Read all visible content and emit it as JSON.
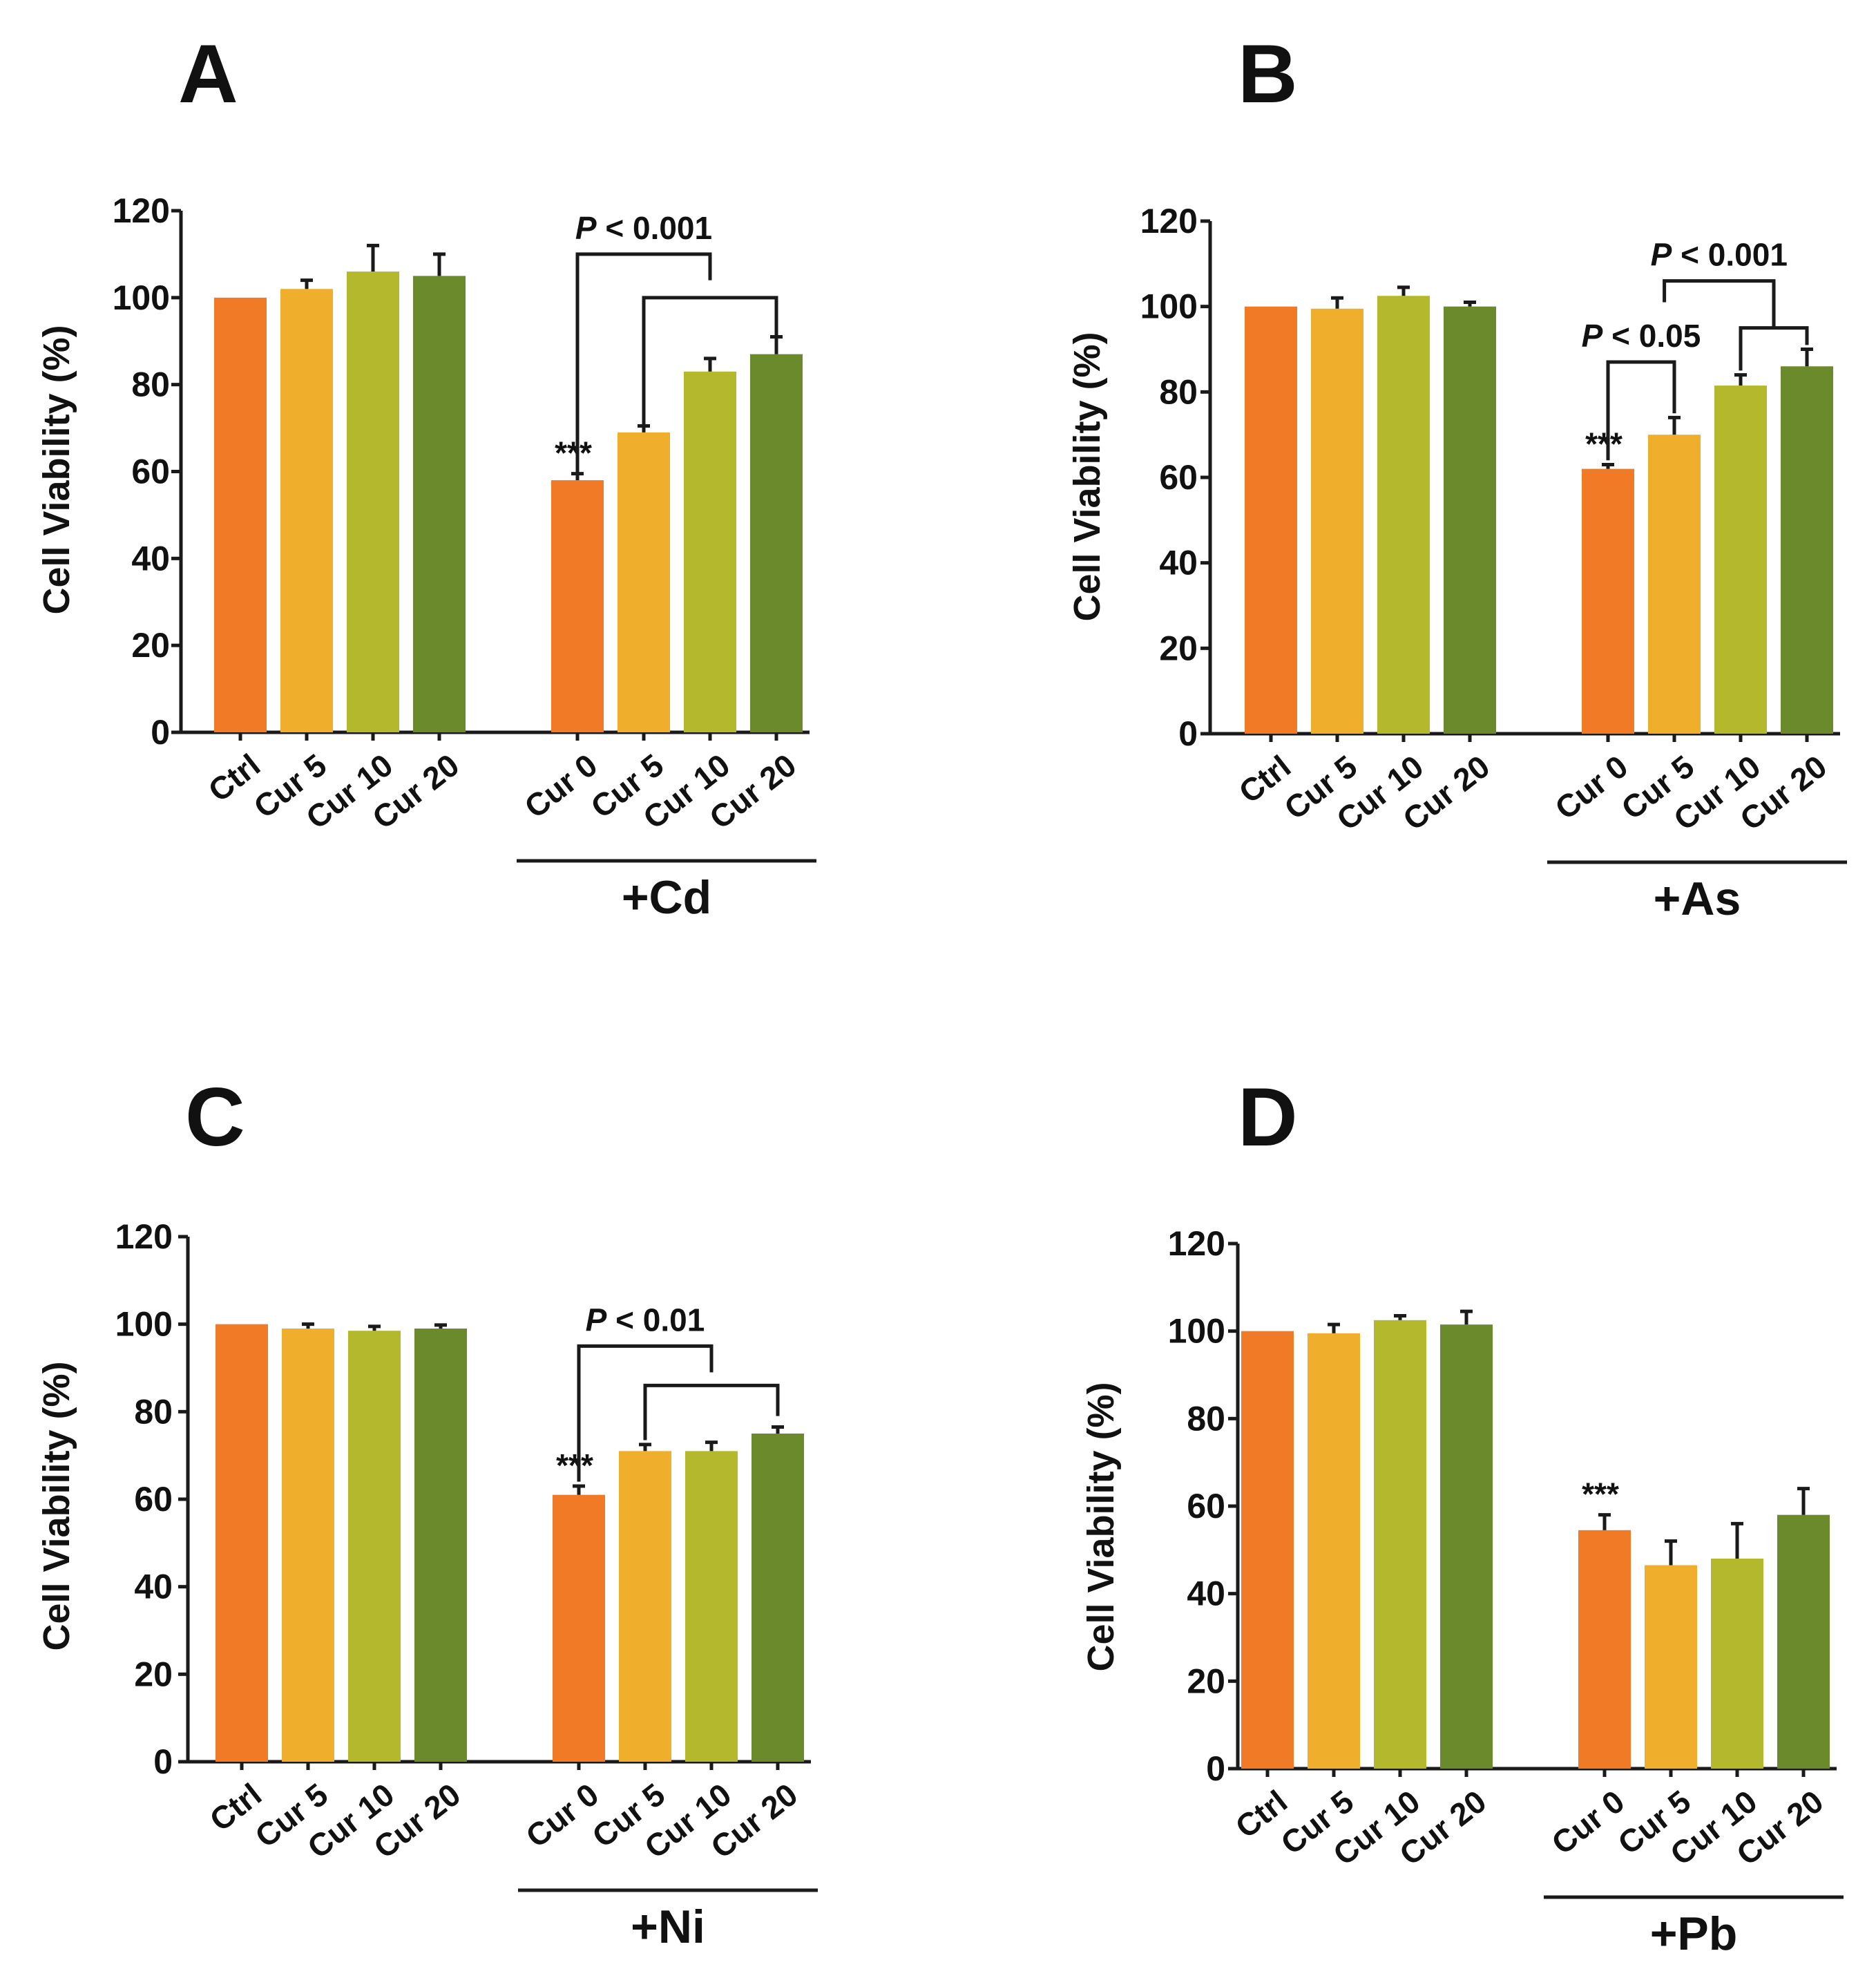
{
  "colors": {
    "Ctrl": "#f17a27",
    "Cur 0": "#f17a27",
    "Cur 5": "#efaf2c",
    "Cur 10": "#b4b82d",
    "Cur 20": "#6a8a2c"
  },
  "chart_data": [
    {
      "type": "bar",
      "panel": "A",
      "ylabel": "Cell Viability (%)",
      "ylim": [
        0,
        120
      ],
      "yticks": [
        0,
        20,
        40,
        60,
        80,
        100,
        120
      ],
      "groups": [
        {
          "label": "",
          "categories": [
            "Ctrl",
            "Cur 5",
            "Cur 10",
            "Cur 20"
          ],
          "values": [
            100,
            102,
            106,
            105
          ],
          "errors": [
            0,
            2,
            6,
            5
          ]
        },
        {
          "label": "+Cd",
          "categories": [
            "Cur 0",
            "Cur 5",
            "Cur 10",
            "Cur 20"
          ],
          "values": [
            58,
            69,
            83,
            87
          ],
          "errors": [
            1.5,
            1.5,
            3,
            4
          ]
        }
      ],
      "stars": [
        {
          "group": 1,
          "bar": 0,
          "text": "***"
        }
      ],
      "brackets": [
        {
          "label": "P < 0.001",
          "from": {
            "group": 1,
            "bar": 0
          },
          "to": {
            "group": 1,
            "bar": 2
          },
          "level": 110,
          "drop_from": 59.5
        },
        {
          "label": "",
          "from": {
            "group": 1,
            "bar": 1
          },
          "to": {
            "group": 1,
            "bar": 3
          },
          "level": 100,
          "drop_from": 70.5,
          "drop_to": 91,
          "parent": 0
        }
      ]
    },
    {
      "type": "bar",
      "panel": "B",
      "ylabel": "Cell Viability (%)",
      "ylim": [
        0,
        120
      ],
      "yticks": [
        0,
        20,
        40,
        60,
        80,
        100,
        120
      ],
      "groups": [
        {
          "label": "",
          "categories": [
            "Ctrl",
            "Cur 5",
            "Cur 10",
            "Cur 20"
          ],
          "values": [
            100,
            99.5,
            102.5,
            100
          ],
          "errors": [
            0,
            2.5,
            2,
            1
          ]
        },
        {
          "label": "+As",
          "categories": [
            "Cur 0",
            "Cur 5",
            "Cur 10",
            "Cur 20"
          ],
          "values": [
            62,
            70,
            81.5,
            86
          ],
          "errors": [
            1,
            4,
            2.5,
            4
          ]
        }
      ],
      "stars": [
        {
          "group": 1,
          "bar": 0,
          "text": "***"
        }
      ],
      "brackets": [
        {
          "label": "P < 0.05",
          "from": {
            "group": 1,
            "bar": 0
          },
          "to": {
            "group": 1,
            "bar": 1
          },
          "level": 87,
          "drop_from": 64,
          "drop_to": 75
        },
        {
          "label": "",
          "from": {
            "group": 1,
            "bar": 2
          },
          "to": {
            "group": 1,
            "bar": 3
          },
          "level": 95,
          "drop_from": 85,
          "drop_to": 91
        },
        {
          "label": "P < 0.001",
          "from": {
            "group": 1,
            "bar": 0.85
          },
          "to": {
            "group": 1,
            "bar": 2.5
          },
          "level": 106,
          "drop_from": 101,
          "parent": 1
        }
      ]
    },
    {
      "type": "bar",
      "panel": "C",
      "ylabel": "Cell Viability (%)",
      "ylim": [
        0,
        120
      ],
      "yticks": [
        0,
        20,
        40,
        60,
        80,
        100,
        120
      ],
      "groups": [
        {
          "label": "",
          "categories": [
            "Ctrl",
            "Cur 5",
            "Cur 10",
            "Cur 20"
          ],
          "values": [
            100,
            99,
            98.5,
            99
          ],
          "errors": [
            0,
            1,
            1,
            0.8
          ]
        },
        {
          "label": "+Ni",
          "categories": [
            "Cur 0",
            "Cur 5",
            "Cur 10",
            "Cur 20"
          ],
          "values": [
            61,
            71,
            71,
            75
          ],
          "errors": [
            2,
            1.5,
            2,
            1.5
          ]
        }
      ],
      "stars": [
        {
          "group": 1,
          "bar": 0,
          "text": "***"
        }
      ],
      "brackets": [
        {
          "label": "P < 0.01",
          "from": {
            "group": 1,
            "bar": 0
          },
          "to": {
            "group": 1,
            "bar": 2
          },
          "level": 95,
          "drop_from": 64
        },
        {
          "label": "",
          "from": {
            "group": 1,
            "bar": 1
          },
          "to": {
            "group": 1,
            "bar": 3
          },
          "level": 86,
          "drop_from": 73.5,
          "drop_to": 79,
          "parent": 0
        }
      ]
    },
    {
      "type": "bar",
      "panel": "D",
      "ylabel": "Cell Viability (%)",
      "ylim": [
        0,
        120
      ],
      "yticks": [
        0,
        20,
        40,
        60,
        80,
        100,
        120
      ],
      "groups": [
        {
          "label": "",
          "categories": [
            "Ctrl",
            "Cur 5",
            "Cur 10",
            "Cur 20"
          ],
          "values": [
            100,
            99.5,
            102.5,
            101.5
          ],
          "errors": [
            0,
            2,
            1,
            3
          ]
        },
        {
          "label": "+Pb",
          "categories": [
            "Cur 0",
            "Cur 5",
            "Cur 10",
            "Cur 20"
          ],
          "values": [
            54.5,
            46.5,
            48,
            58
          ],
          "errors": [
            3.5,
            5.5,
            8,
            6
          ]
        }
      ],
      "stars": [
        {
          "group": 1,
          "bar": 0,
          "text": "***"
        }
      ],
      "brackets": []
    }
  ]
}
